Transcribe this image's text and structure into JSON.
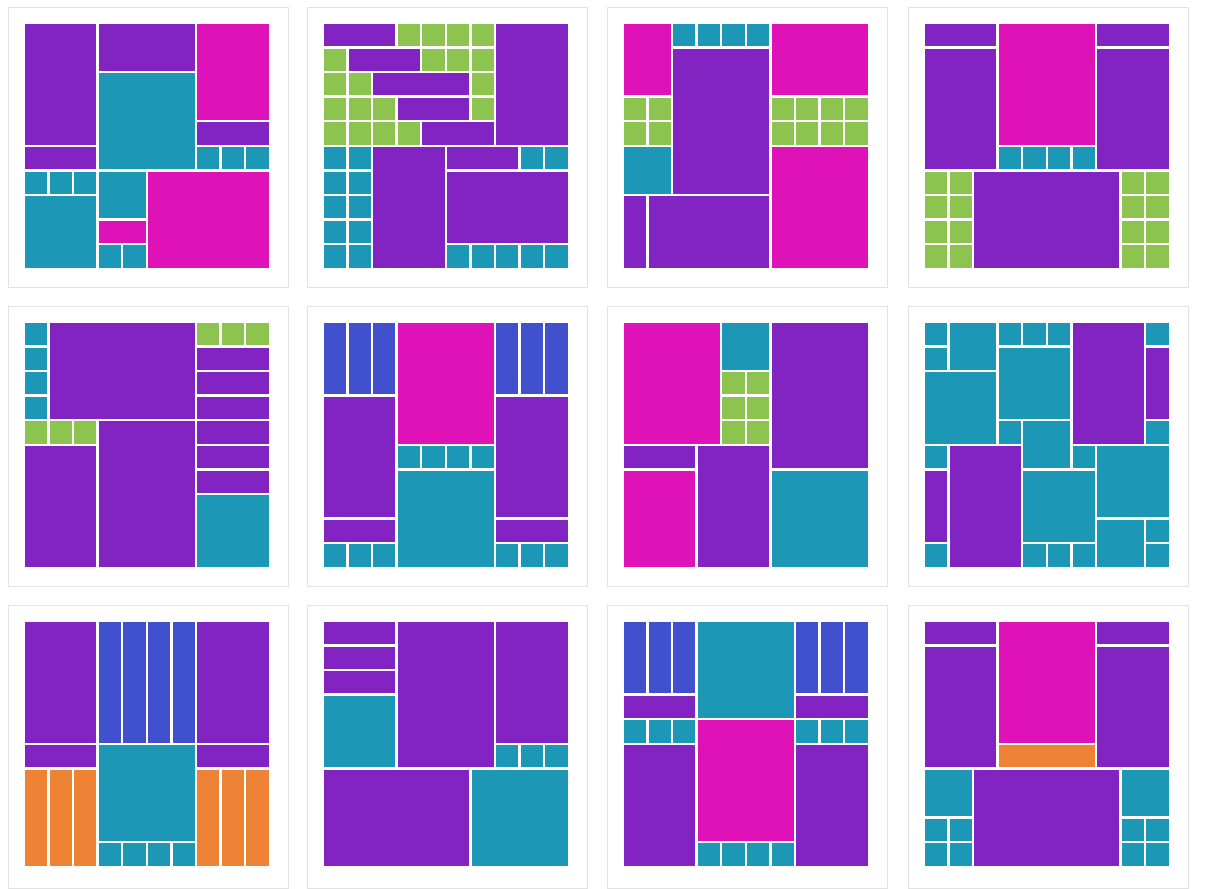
{
  "colors": {
    "purple": "#8124c2",
    "magenta": "#de12b7",
    "teal": "#1c97b5",
    "green": "#8dc450",
    "blue": "#4150cc",
    "orange": "#ee8335",
    "card_border": "#e2e2e2",
    "background": "#ffffff"
  },
  "gallery": {
    "layouts": [
      {
        "id": "layout-1"
      },
      {
        "id": "layout-2"
      },
      {
        "id": "layout-3"
      },
      {
        "id": "layout-4"
      },
      {
        "id": "layout-5"
      },
      {
        "id": "layout-6"
      },
      {
        "id": "layout-7"
      },
      {
        "id": "layout-8"
      },
      {
        "id": "layout-9"
      },
      {
        "id": "layout-10"
      },
      {
        "id": "layout-11"
      },
      {
        "id": "layout-12"
      }
    ]
  }
}
